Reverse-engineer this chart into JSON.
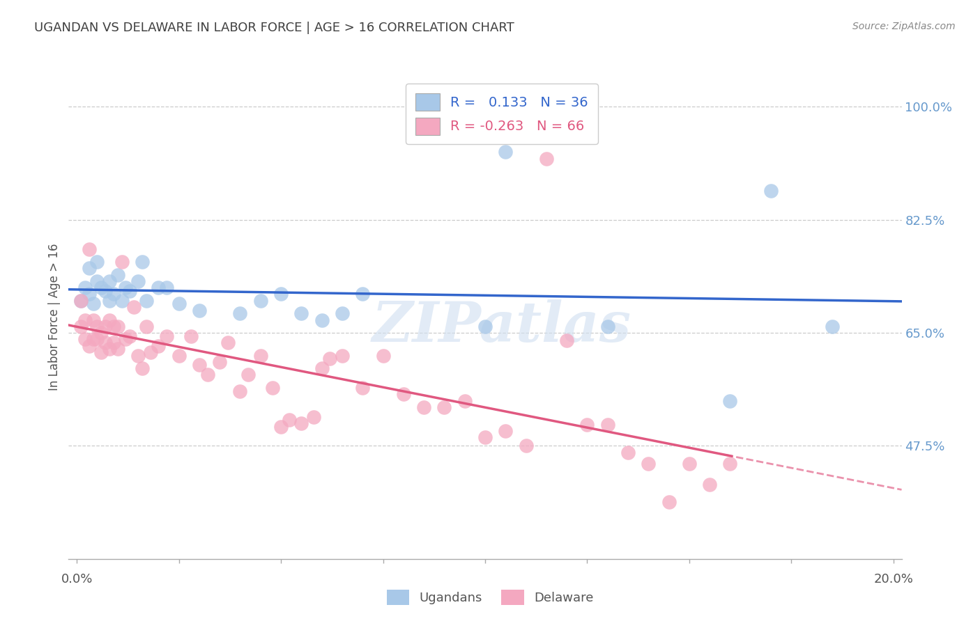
{
  "title": "UGANDAN VS DELAWARE IN LABOR FORCE | AGE > 16 CORRELATION CHART",
  "source": "Source: ZipAtlas.com",
  "ylabel": "In Labor Force | Age > 16",
  "ytick_labels": [
    "100.0%",
    "82.5%",
    "65.0%",
    "47.5%"
  ],
  "ytick_values": [
    1.0,
    0.825,
    0.65,
    0.475
  ],
  "ylim": [
    0.3,
    1.05
  ],
  "xlim": [
    -0.002,
    0.202
  ],
  "blue_R": 0.133,
  "blue_N": 36,
  "pink_R": -0.263,
  "pink_N": 66,
  "blue_color": "#a8c8e8",
  "pink_color": "#f4a8c0",
  "blue_line_color": "#3366cc",
  "pink_line_color": "#e05880",
  "background_color": "#ffffff",
  "grid_color": "#cccccc",
  "title_color": "#404040",
  "right_label_color": "#6699cc",
  "legend_label_blue": "Ugandans",
  "legend_label_pink": "Delaware",
  "blue_points_x": [
    0.001,
    0.002,
    0.003,
    0.003,
    0.004,
    0.005,
    0.005,
    0.006,
    0.007,
    0.008,
    0.008,
    0.009,
    0.01,
    0.011,
    0.012,
    0.013,
    0.015,
    0.016,
    0.017,
    0.02,
    0.022,
    0.025,
    0.03,
    0.04,
    0.045,
    0.05,
    0.055,
    0.06,
    0.065,
    0.07,
    0.1,
    0.105,
    0.13,
    0.16,
    0.17,
    0.185
  ],
  "blue_points_y": [
    0.7,
    0.72,
    0.71,
    0.75,
    0.695,
    0.73,
    0.76,
    0.72,
    0.715,
    0.7,
    0.73,
    0.71,
    0.74,
    0.7,
    0.72,
    0.715,
    0.73,
    0.76,
    0.7,
    0.72,
    0.72,
    0.695,
    0.685,
    0.68,
    0.7,
    0.71,
    0.68,
    0.67,
    0.68,
    0.71,
    0.66,
    0.93,
    0.66,
    0.545,
    0.87,
    0.66
  ],
  "pink_points_x": [
    0.001,
    0.001,
    0.002,
    0.002,
    0.003,
    0.003,
    0.004,
    0.004,
    0.005,
    0.005,
    0.006,
    0.006,
    0.007,
    0.007,
    0.008,
    0.008,
    0.009,
    0.009,
    0.01,
    0.01,
    0.011,
    0.012,
    0.013,
    0.014,
    0.015,
    0.016,
    0.017,
    0.018,
    0.02,
    0.022,
    0.025,
    0.028,
    0.03,
    0.032,
    0.035,
    0.037,
    0.04,
    0.042,
    0.045,
    0.048,
    0.05,
    0.052,
    0.055,
    0.058,
    0.06,
    0.062,
    0.065,
    0.07,
    0.075,
    0.08,
    0.085,
    0.09,
    0.095,
    0.1,
    0.105,
    0.11,
    0.115,
    0.12,
    0.125,
    0.13,
    0.135,
    0.14,
    0.145,
    0.15,
    0.155,
    0.16
  ],
  "pink_points_y": [
    0.66,
    0.7,
    0.67,
    0.64,
    0.78,
    0.63,
    0.67,
    0.64,
    0.66,
    0.64,
    0.65,
    0.62,
    0.66,
    0.635,
    0.67,
    0.625,
    0.66,
    0.635,
    0.66,
    0.625,
    0.76,
    0.64,
    0.645,
    0.69,
    0.615,
    0.595,
    0.66,
    0.62,
    0.63,
    0.645,
    0.615,
    0.645,
    0.6,
    0.585,
    0.605,
    0.635,
    0.56,
    0.585,
    0.615,
    0.565,
    0.505,
    0.515,
    0.51,
    0.52,
    0.595,
    0.61,
    0.615,
    0.565,
    0.615,
    0.555,
    0.535,
    0.535,
    0.545,
    0.488,
    0.498,
    0.476,
    0.92,
    0.638,
    0.508,
    0.508,
    0.465,
    0.448,
    0.388,
    0.448,
    0.415,
    0.448
  ]
}
